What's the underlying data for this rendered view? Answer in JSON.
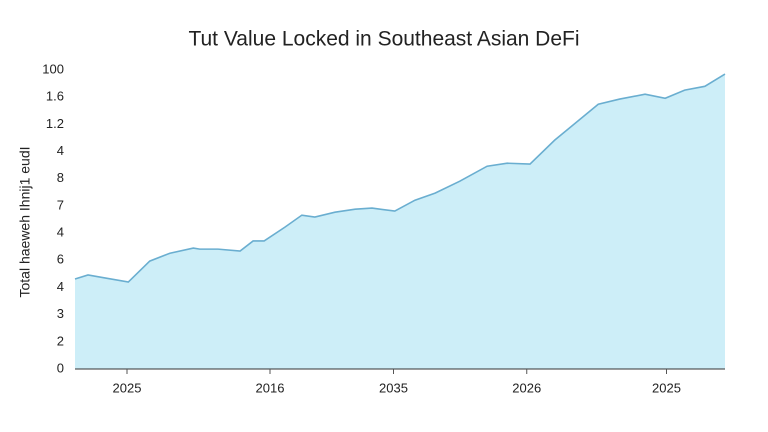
{
  "chart_data": {
    "type": "area",
    "title": "Tut Value Locked in Southeast Asian DeFi",
    "ylabel": "Total  haeweh Ihnij1 eudI",
    "x": [
      0,
      2,
      4.6,
      8.2,
      11.5,
      14.6,
      18.2,
      19.2,
      22,
      25.4,
      27.4,
      29.1,
      32.3,
      34.9,
      36.9,
      40,
      43.1,
      45.7,
      49.2,
      52.3,
      55.4,
      59.2,
      63.4,
      66.5,
      70,
      73.8,
      80.5,
      83.8,
      87.7,
      90.8,
      93.8,
      96.9,
      100
    ],
    "values": [
      3.31,
      3.46,
      3.35,
      3.2,
      3.97,
      4.26,
      4.45,
      4.41,
      4.41,
      4.34,
      4.71,
      4.71,
      5.22,
      5.66,
      5.59,
      5.77,
      5.88,
      5.92,
      5.81,
      6.21,
      6.47,
      6.91,
      7.46,
      7.57,
      7.54,
      8.42,
      9.74,
      9.93,
      10.11,
      9.96,
      10.26,
      10.4,
      10.85
    ],
    "color": "#6aaed0",
    "fill": "#cdeef8",
    "xlim": [
      0,
      100
    ],
    "xticks": [
      {
        "value": 8,
        "label": "2025"
      },
      {
        "value": 30,
        "label": "2016"
      },
      {
        "value": 49,
        "label": "2035"
      },
      {
        "value": 69.5,
        "label": "2026"
      },
      {
        "value": 91,
        "label": "2025"
      }
    ],
    "ylim": [
      0,
      11
    ],
    "yticks": [
      0,
      {
        "value": 1,
        "label": "2"
      },
      {
        "value": 2,
        "label": "3"
      },
      {
        "value": 3,
        "label": "4"
      },
      {
        "value": 4,
        "label": "6"
      },
      {
        "value": 5,
        "label": "4"
      },
      {
        "value": 6,
        "label": "7"
      },
      {
        "value": 7,
        "label": "8"
      },
      {
        "value": 8,
        "label": "4"
      },
      {
        "value": 9,
        "label": "1.2"
      },
      {
        "value": 10,
        "label": "1.6"
      },
      {
        "value": 11,
        "label": "100"
      }
    ]
  }
}
